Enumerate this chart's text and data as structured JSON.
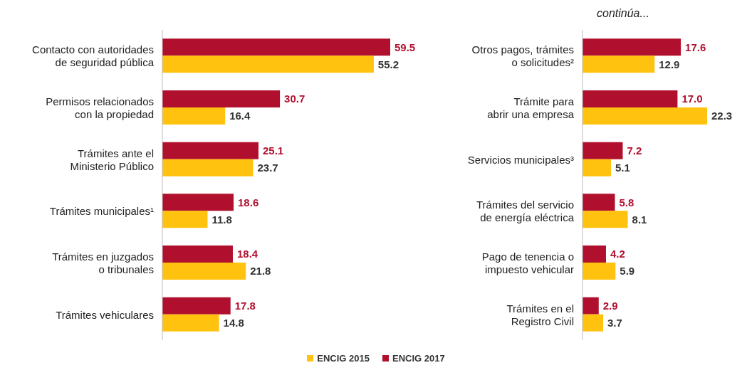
{
  "chart_data": [
    {
      "type": "bar",
      "orientation": "horizontal",
      "categories": [
        "Contacto con autoridades de seguridad pública",
        "Permisos relacionados con la propiedad",
        "Trámites ante el Ministerio Público",
        "Trámites municipales¹",
        "Trámites en juzgados o tribunales",
        "Trámites vehiculares"
      ],
      "series": [
        {
          "name": "ENCIG 2015",
          "color": "#ffc20e",
          "values": [
            55.2,
            16.4,
            23.7,
            11.8,
            21.8,
            14.8
          ],
          "value_labels": [
            "55.2",
            "16.4",
            "23.7",
            "11.8",
            "21.8",
            "14.8"
          ]
        },
        {
          "name": "ENCIG 2017",
          "color": "#b0102e",
          "values": [
            59.5,
            30.7,
            25.1,
            18.6,
            18.4,
            17.8
          ],
          "value_labels": [
            "59.5",
            "30.7",
            "25.1",
            "18.6",
            "18.4",
            "17.8"
          ]
        }
      ],
      "tick_labels": "y",
      "legend": "bottom",
      "grid": false
    },
    {
      "type": "bar",
      "orientation": "horizontal",
      "annotations": [
        "continúa..."
      ],
      "categories": [
        "Otros pagos, trámites o solicitudes²",
        "Trámite para abrir una empresa",
        "Servicios municipales³",
        "Trámites del servicio de energía eléctrica",
        "Pago de tenencia o impuesto vehicular",
        "Trámites en el Registro Civil"
      ],
      "series": [
        {
          "color": "#ffc20e",
          "values": [
            12.9,
            22.3,
            5.1,
            8.1,
            5.9,
            3.7
          ],
          "value_labels": [
            "12.9",
            "22.3",
            "5.1",
            "8.1",
            "5.9",
            "3.7"
          ]
        },
        {
          "color": "#b0102e",
          "values": [
            17.6,
            17.0,
            7.2,
            5.8,
            4.2,
            2.9
          ],
          "value_labels": [
            "17.6",
            "17.0",
            "7.2",
            "5.8",
            "4.2",
            "2.9"
          ]
        }
      ],
      "tick_labels": "y",
      "grid": false
    }
  ]
}
